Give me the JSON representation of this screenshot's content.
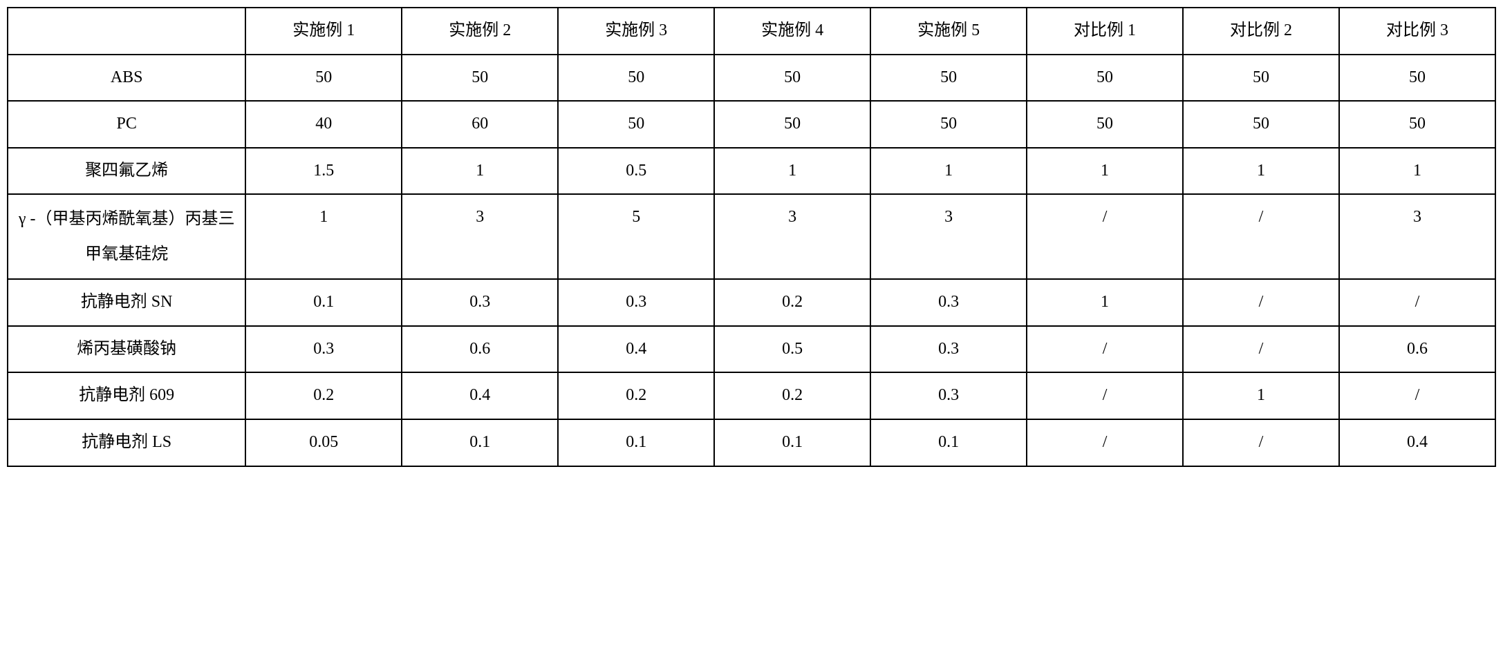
{
  "table": {
    "background_color": "#ffffff",
    "border_color": "#000000",
    "text_color": "#000000",
    "font_size_pt": 24,
    "columns": [
      "",
      "实施例 1",
      "实施例 2",
      "实施例 3",
      "实施例 4",
      "实施例 5",
      "对比例 1",
      "对比例 2",
      "对比例 3"
    ],
    "rows": [
      {
        "label": "ABS",
        "values": [
          "50",
          "50",
          "50",
          "50",
          "50",
          "50",
          "50",
          "50"
        ]
      },
      {
        "label": "PC",
        "values": [
          "40",
          "60",
          "50",
          "50",
          "50",
          "50",
          "50",
          "50"
        ]
      },
      {
        "label": "聚四氟乙烯",
        "values": [
          "1.5",
          "1",
          "0.5",
          "1",
          "1",
          "1",
          "1",
          "1"
        ]
      },
      {
        "label": "γ -（甲基丙烯酰氧基）丙基三甲氧基硅烷",
        "multiline": true,
        "values": [
          "1",
          "3",
          "5",
          "3",
          "3",
          "/",
          "/",
          "3"
        ]
      },
      {
        "label": "抗静电剂 SN",
        "values": [
          "0.1",
          "0.3",
          "0.3",
          "0.2",
          "0.3",
          "1",
          "/",
          "/"
        ]
      },
      {
        "label": "烯丙基磺酸钠",
        "values": [
          "0.3",
          "0.6",
          "0.4",
          "0.5",
          "0.3",
          "/",
          "/",
          "0.6"
        ]
      },
      {
        "label": "抗静电剂 609",
        "values": [
          "0.2",
          "0.4",
          "0.2",
          "0.2",
          "0.3",
          "/",
          "1",
          "/"
        ]
      },
      {
        "label": "抗静电剂 LS",
        "values": [
          "0.05",
          "0.1",
          "0.1",
          "0.1",
          "0.1",
          "/",
          "/",
          "0.4"
        ]
      }
    ]
  }
}
